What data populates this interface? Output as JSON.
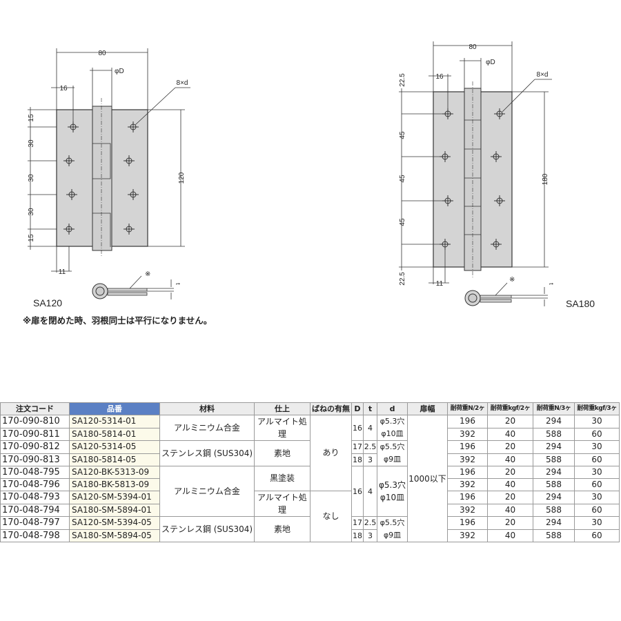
{
  "drawing_sa120": {
    "width_dim": "80",
    "pin_dim": "φD",
    "hole_offset_top": "16",
    "hole_note": "8×d",
    "pitch": [
      "15",
      "30",
      "30",
      "30",
      "15"
    ],
    "height_dim": "120",
    "hole_offset_bottom": "11",
    "section_mark": "※",
    "thickness": "t",
    "model": "SA120"
  },
  "drawing_sa180": {
    "width_dim": "80",
    "pin_dim": "φD",
    "hole_offset_top": "16",
    "hole_note": "8×d",
    "pitch": [
      "22.5",
      "45",
      "45",
      "45",
      "22.5"
    ],
    "height_dim": "180",
    "hole_offset_bottom": "11",
    "section_mark": "※",
    "thickness": "t",
    "model": "SA180"
  },
  "note": "※扉を閉めた時、羽根同士は平行になりません。",
  "colors": {
    "part_number_header": "#5b80c4",
    "part_number_cell": "#fcfaea",
    "plate": "#d4d4d4"
  },
  "table": {
    "headers": [
      "注文コード",
      "品番",
      "材料",
      "仕上",
      "ばねの有無",
      "D",
      "t",
      "d",
      "扉幅",
      "耐荷重N/2ヶ",
      "耐荷重kgf/2ヶ",
      "耐荷重N/3ヶ",
      "耐荷重kgf/3ヶ"
    ],
    "rows": [
      {
        "code": "170-090-810",
        "part": "SA120-5314-01",
        "n2": "196",
        "kgf2": "20",
        "n3": "294",
        "kgf3": "30"
      },
      {
        "code": "170-090-811",
        "part": "SA180-5814-01",
        "n2": "392",
        "kgf2": "40",
        "n3": "588",
        "kgf3": "60"
      },
      {
        "code": "170-090-812",
        "part": "SA120-5314-05",
        "n2": "196",
        "kgf2": "20",
        "n3": "294",
        "kgf3": "30"
      },
      {
        "code": "170-090-813",
        "part": "SA180-5814-05",
        "n2": "392",
        "kgf2": "40",
        "n3": "588",
        "kgf3": "60"
      },
      {
        "code": "170-048-795",
        "part": "SA120-BK-5313-09",
        "n2": "196",
        "kgf2": "20",
        "n3": "294",
        "kgf3": "30"
      },
      {
        "code": "170-048-796",
        "part": "SA180-BK-5813-09",
        "n2": "392",
        "kgf2": "40",
        "n3": "588",
        "kgf3": "60"
      },
      {
        "code": "170-048-793",
        "part": "SA120-SM-5394-01",
        "n2": "196",
        "kgf2": "20",
        "n3": "294",
        "kgf3": "30"
      },
      {
        "code": "170-048-794",
        "part": "SA180-SM-5894-01",
        "n2": "392",
        "kgf2": "40",
        "n3": "588",
        "kgf3": "60"
      },
      {
        "code": "170-048-797",
        "part": "SA120-SM-5394-05",
        "n2": "196",
        "kgf2": "20",
        "n3": "294",
        "kgf3": "30"
      },
      {
        "code": "170-048-798",
        "part": "SA180-SM-5894-05",
        "n2": "392",
        "kgf2": "40",
        "n3": "588",
        "kgf3": "60"
      }
    ],
    "merged": {
      "material_al_1": "アルミニウム合金",
      "material_ss_1": "ステンレス鋼 (SUS304)",
      "material_al_2": "アルミニウム合金",
      "material_ss_2": "ステンレス鋼 (SUS304)",
      "finish_alumite_1": "アルマイト処理",
      "finish_raw_1": "素地",
      "finish_black": "黒塗装",
      "finish_alumite_2": "アルマイト処理",
      "finish_raw_2": "素地",
      "spring_yes": "あり",
      "spring_no": "なし",
      "D_16a": "16",
      "t_4a": "4",
      "d_a": "φ5.3穴 φ10皿",
      "D_17a": "17",
      "t_25a": "2.5",
      "D_18a": "18",
      "t_3a": "3",
      "d_b": "φ5.5穴 φ9皿",
      "D_16b": "16",
      "t_4b": "4",
      "d_c": "φ5.3穴 φ10皿",
      "D_17b": "17",
      "t_25b": "2.5",
      "D_18b": "18",
      "t_3b": "3",
      "d_d": "φ5.5穴 φ9皿",
      "door_width": "1000以下"
    }
  }
}
